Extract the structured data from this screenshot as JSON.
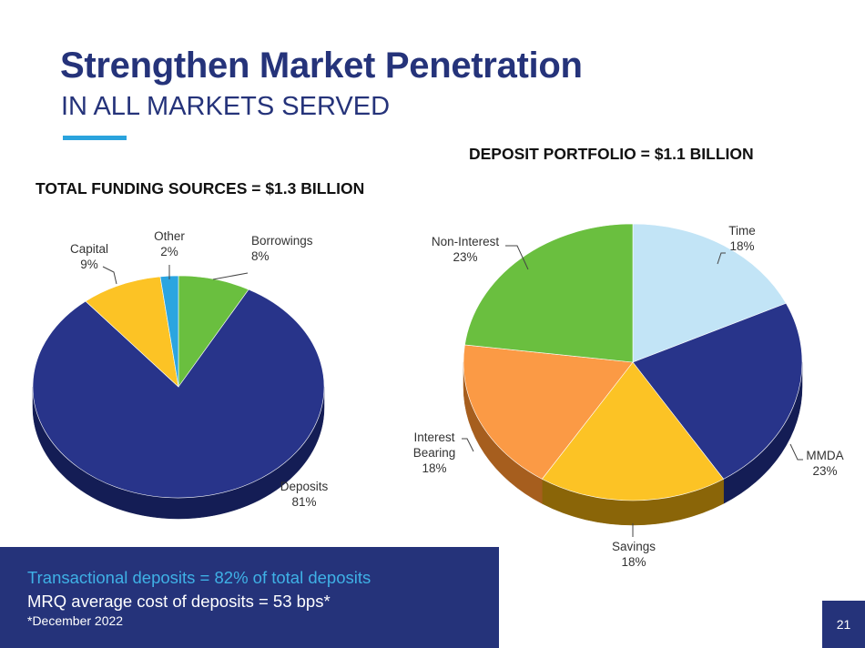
{
  "header": {
    "title": "Strengthen Market Penetration",
    "subtitle": "IN ALL MARKETS SERVED"
  },
  "footer": {
    "line1": "Transactional deposits = 82% of total deposits",
    "line2": "MRQ average cost of deposits = 53 bps*",
    "line3": "*December 2022"
  },
  "page_number": "21",
  "chart_data": [
    {
      "type": "pie",
      "title": "TOTAL FUNDING SOURCES = $1.3 BILLION",
      "slices": [
        {
          "label": "Borrowings",
          "pct_label": "8%",
          "value": 8,
          "color": "#6abf3f",
          "side": "#3d7a20"
        },
        {
          "label": "Deposits",
          "pct_label": "81%",
          "value": 81,
          "color": "#28348a",
          "side": "#141d55"
        },
        {
          "label": "Capital",
          "pct_label": "9%",
          "value": 9,
          "color": "#fcc325",
          "side": "#a07a10"
        },
        {
          "label": "Other",
          "pct_label": "2%",
          "value": 2,
          "color": "#2ba5e0",
          "side": "#1a6b94"
        }
      ]
    },
    {
      "type": "pie",
      "title": "DEPOSIT PORTFOLIO = $1.1 BILLION",
      "slices": [
        {
          "label": "Time",
          "pct_label": "18%",
          "value": 18,
          "color": "#c2e4f6",
          "side": "#7fa6bb"
        },
        {
          "label": "MMDA",
          "pct_label": "23%",
          "value": 23,
          "color": "#28348a",
          "side": "#141d55"
        },
        {
          "label": "Savings",
          "pct_label": "18%",
          "value": 18,
          "color": "#fcc325",
          "side": "#8a6508"
        },
        {
          "label": "Interest Bearing",
          "pct_label": "18%",
          "value": 18,
          "color": "#fb9a45",
          "side": "#a65e1e"
        },
        {
          "label": "Non-Interest",
          "pct_label": "23%",
          "value": 23,
          "color": "#6abf3f",
          "side": "#3d7a20"
        }
      ]
    }
  ]
}
